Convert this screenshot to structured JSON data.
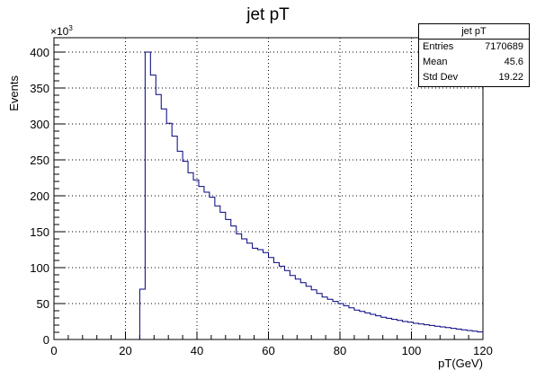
{
  "chart_data": {
    "type": "histogram",
    "title": "jet pT",
    "xlabel": "pT(GeV)",
    "ylabel": "Events",
    "y_multiplier": "×10",
    "y_multiplier_exp": "3",
    "xlim": [
      0,
      120
    ],
    "ylim": [
      0,
      420
    ],
    "grid": true,
    "line_color": "#000080",
    "bin_width": 1.5,
    "xticks": [
      "0",
      "20",
      "40",
      "60",
      "80",
      "100",
      "120"
    ],
    "yticks": [
      "0",
      "50",
      "100",
      "150",
      "200",
      "250",
      "300",
      "350",
      "400"
    ],
    "x": [
      24,
      25.5,
      27,
      28.5,
      30,
      31.5,
      33,
      34.5,
      36,
      37.5,
      39,
      40.5,
      42,
      43.5,
      45,
      46.5,
      48,
      49.5,
      51,
      52.5,
      54,
      55.5,
      57,
      58.5,
      60,
      61.5,
      63,
      64.5,
      66,
      67.5,
      69,
      70.5,
      72,
      73.5,
      75,
      76.5,
      78,
      79.5,
      81,
      82.5,
      84,
      85.5,
      87,
      88.5,
      90,
      91.5,
      93,
      94.5,
      96,
      97.5,
      99,
      100.5,
      102,
      103.5,
      105,
      106.5,
      108,
      109.5,
      111,
      112.5,
      114,
      115.5,
      117,
      118.5
    ],
    "values": [
      70,
      400,
      368,
      341,
      321,
      301,
      283,
      262,
      248,
      232,
      222,
      213,
      205,
      198,
      186,
      177,
      167,
      158,
      147,
      140,
      134,
      127,
      125,
      121,
      114,
      107,
      102,
      96,
      89,
      84,
      79,
      74,
      69,
      64,
      59,
      56,
      53,
      50,
      47,
      44,
      41,
      39,
      37,
      35,
      33,
      31,
      29.5,
      28,
      26.5,
      25,
      24,
      22.5,
      21.5,
      20.5,
      19.5,
      18.5,
      17.5,
      16.5,
      15.5,
      14.5,
      13.5,
      12.5,
      11.5,
      10.5
    ]
  },
  "stats_box": {
    "title": "jet pT",
    "rows": [
      {
        "label": "Entries",
        "value": "7170689"
      },
      {
        "label": "Mean",
        "value": "45.6"
      },
      {
        "label": "Std Dev",
        "value": "19.22"
      }
    ]
  }
}
